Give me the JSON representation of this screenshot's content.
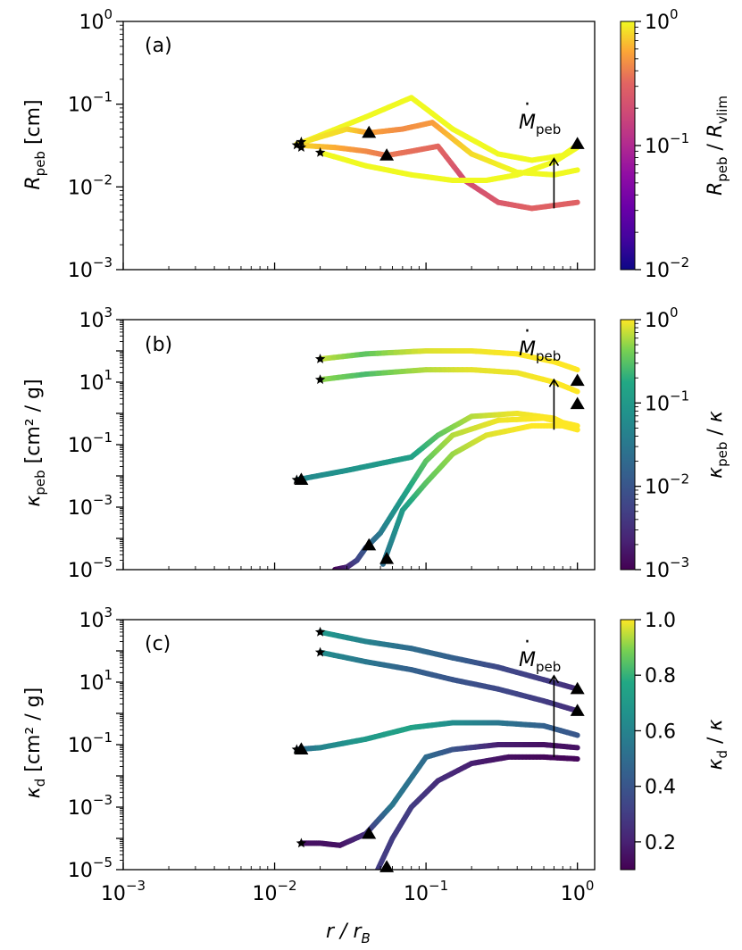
{
  "figure": {
    "xlabel_main": "r / r",
    "xlabel_sub": "B"
  },
  "chart_data": [
    {
      "type": "line",
      "panel_label": "(a)",
      "xscale": "log",
      "yscale": "log",
      "xlim": [
        0.001,
        1.3
      ],
      "ylim": [
        0.001,
        1
      ],
      "ylabel": {
        "main": "R",
        "sub": "peb",
        "unit": " [cm]"
      },
      "yticks": [
        {
          "base": "10",
          "exp": "0"
        },
        {
          "base": "10",
          "exp": "−1"
        },
        {
          "base": "10",
          "exp": "−2"
        },
        {
          "base": "10",
          "exp": "−3"
        }
      ],
      "xticks": [],
      "annotation": {
        "main": "M",
        "sub": "peb",
        "dot": "·",
        "x": 0.7,
        "y_from": 0.0055,
        "y_to": 0.022
      },
      "colorbar": {
        "colormap": "plasma",
        "scale": "log",
        "range": [
          0.01,
          1
        ],
        "ticks": [
          {
            "base": "10",
            "exp": "0"
          },
          {
            "base": "10",
            "exp": "−1"
          },
          {
            "base": "10",
            "exp": "−2"
          }
        ],
        "label": {
          "main": "R",
          "sub": "peb",
          "sep": " / ",
          "main2": "R",
          "sub2": "vlim"
        }
      },
      "series": [
        {
          "x": [
            0.015,
            0.04,
            0.08,
            0.15,
            0.3,
            0.5,
            0.8,
            1.0
          ],
          "y": [
            0.034,
            0.07,
            0.12,
            0.05,
            0.025,
            0.021,
            0.024,
            0.032
          ],
          "c": [
            0.95,
            1.0,
            1.0,
            1.0,
            1.0,
            1.0,
            1.0,
            1.0
          ]
        },
        {
          "x": [
            0.014,
            0.03,
            0.042,
            0.07,
            0.11,
            0.2,
            0.4,
            0.7,
            1.0
          ],
          "y": [
            0.033,
            0.05,
            0.045,
            0.05,
            0.06,
            0.025,
            0.015,
            0.014,
            0.016
          ],
          "c": [
            0.9,
            0.8,
            0.55,
            0.45,
            0.5,
            0.8,
            1.0,
            1.0,
            1.0
          ]
        },
        {
          "x": [
            0.014,
            0.025,
            0.04,
            0.055,
            0.08,
            0.12,
            0.18,
            0.3,
            0.5,
            1.0
          ],
          "y": [
            0.032,
            0.03,
            0.027,
            0.024,
            0.027,
            0.031,
            0.012,
            0.0065,
            0.0055,
            0.0065
          ],
          "c": [
            0.8,
            0.6,
            0.45,
            0.38,
            0.35,
            0.33,
            0.2,
            0.25,
            0.3,
            0.3
          ]
        },
        {
          "x": [
            0.02,
            0.04,
            0.08,
            0.15,
            0.25,
            0.4,
            0.7,
            1.0
          ],
          "y": [
            0.026,
            0.018,
            0.014,
            0.012,
            0.012,
            0.014,
            0.02,
            0.03
          ],
          "c": [
            1.0,
            1.0,
            1.0,
            1.0,
            1.0,
            1.0,
            1.0,
            1.0
          ]
        }
      ],
      "stars": [
        [
          0.014,
          0.032
        ],
        [
          0.015,
          0.035
        ],
        [
          0.015,
          0.03
        ],
        [
          0.02,
          0.026
        ]
      ],
      "triangles": [
        [
          0.042,
          0.045
        ],
        [
          0.055,
          0.024
        ],
        [
          1.0,
          0.033
        ]
      ]
    },
    {
      "type": "line",
      "panel_label": "(b)",
      "xscale": "log",
      "yscale": "log",
      "xlim": [
        0.001,
        1.3
      ],
      "ylim": [
        1e-05,
        1000
      ],
      "ylabel": {
        "main": "κ",
        "sub": "peb",
        "unit": " [cm² / g]"
      },
      "yticks": [
        {
          "base": "10",
          "exp": "3"
        },
        {
          "base": "10",
          "exp": "1"
        },
        {
          "base": "10",
          "exp": "−1"
        },
        {
          "base": "10",
          "exp": "−3"
        },
        {
          "base": "10",
          "exp": "−5"
        }
      ],
      "xticks": [],
      "annotation": {
        "main": "M",
        "sub": "peb",
        "dot": "·",
        "x": 0.7,
        "y_from": 0.3,
        "y_to": 12
      },
      "colorbar": {
        "colormap": "viridis",
        "scale": "log",
        "range": [
          0.001,
          1
        ],
        "ticks": [
          {
            "base": "10",
            "exp": "0"
          },
          {
            "base": "10",
            "exp": "−1"
          },
          {
            "base": "10",
            "exp": "−2"
          },
          {
            "base": "10",
            "exp": "−3"
          }
        ],
        "label": {
          "main": "κ",
          "sub": "peb",
          "sep": " / ",
          "main2": "κ",
          "sub2": ""
        }
      },
      "series": [
        {
          "x": [
            0.02,
            0.04,
            0.1,
            0.2,
            0.4,
            0.7,
            1.0
          ],
          "y": [
            55,
            80,
            100,
            100,
            80,
            45,
            25
          ],
          "c": [
            0.7,
            0.3,
            0.8,
            0.9,
            1.0,
            1.0,
            1.0
          ]
        },
        {
          "x": [
            0.02,
            0.04,
            0.1,
            0.2,
            0.4,
            0.7,
            1.0
          ],
          "y": [
            12,
            18,
            25,
            25,
            20,
            10,
            5
          ],
          "c": [
            0.5,
            0.25,
            0.6,
            0.85,
            0.9,
            1.0,
            1.0
          ]
        },
        {
          "x": [
            0.014,
            0.03,
            0.05,
            0.08,
            0.12,
            0.2,
            0.4,
            0.7,
            1.0
          ],
          "y": [
            0.0075,
            0.015,
            0.025,
            0.04,
            0.2,
            0.8,
            1.0,
            0.7,
            0.3
          ],
          "c": [
            0.05,
            0.08,
            0.1,
            0.12,
            0.3,
            0.6,
            0.9,
            1.0,
            1.0
          ]
        },
        {
          "x": [
            0.025,
            0.03,
            0.035,
            0.04,
            0.05,
            0.07,
            0.1,
            0.15,
            0.3,
            0.6,
            1.0
          ],
          "y": [
            1e-05,
            1.2e-05,
            2e-05,
            5e-05,
            0.00015,
            0.002,
            0.03,
            0.2,
            0.6,
            0.7,
            0.4
          ],
          "c": [
            0.001,
            0.002,
            0.005,
            0.01,
            0.03,
            0.1,
            0.3,
            0.6,
            0.9,
            1.0,
            1.0
          ]
        },
        {
          "x": [
            0.052,
            0.06,
            0.07,
            0.1,
            0.15,
            0.25,
            0.5,
            0.8,
            1.0
          ],
          "y": [
            1.5e-05,
            0.0001,
            0.0008,
            0.006,
            0.05,
            0.2,
            0.4,
            0.4,
            0.3
          ],
          "c": [
            0.02,
            0.05,
            0.1,
            0.3,
            0.5,
            0.8,
            1.0,
            1.0,
            1.0
          ]
        }
      ],
      "stars": [
        [
          0.02,
          55
        ],
        [
          0.02,
          12
        ],
        [
          0.014,
          0.0075
        ]
      ],
      "triangles": [
        [
          0.015,
          0.0075
        ],
        [
          0.042,
          6e-05
        ],
        [
          0.055,
          2.2e-05
        ],
        [
          1.0,
          11
        ],
        [
          1.0,
          2
        ]
      ]
    },
    {
      "type": "line",
      "panel_label": "(c)",
      "xscale": "log",
      "yscale": "log",
      "xlim": [
        0.001,
        1.3
      ],
      "ylim": [
        1e-05,
        1000
      ],
      "ylabel": {
        "main": "κ",
        "sub": "d",
        "unit": " [cm² / g]"
      },
      "yticks": [
        {
          "base": "10",
          "exp": "3"
        },
        {
          "base": "10",
          "exp": "1"
        },
        {
          "base": "10",
          "exp": "−1"
        },
        {
          "base": "10",
          "exp": "−3"
        },
        {
          "base": "10",
          "exp": "−5"
        }
      ],
      "xticks": [
        {
          "base": "10",
          "exp": "−3"
        },
        {
          "base": "10",
          "exp": "−2"
        },
        {
          "base": "10",
          "exp": "−1"
        },
        {
          "base": "10",
          "exp": "0"
        }
      ],
      "annotation": {
        "main": "M",
        "sub": "peb",
        "dot": "·",
        "x": 0.7,
        "y_from": 0.04,
        "y_to": 16
      },
      "colorbar": {
        "colormap": "viridis",
        "scale": "linear",
        "range": [
          0.1,
          1.0
        ],
        "ticks": [
          {
            "base": "1.0",
            "exp": ""
          },
          {
            "base": "0.8",
            "exp": ""
          },
          {
            "base": "0.6",
            "exp": ""
          },
          {
            "base": "0.4",
            "exp": ""
          },
          {
            "base": "0.2",
            "exp": ""
          }
        ],
        "label": {
          "main": "κ",
          "sub": "d",
          "sep": " / ",
          "main2": "κ",
          "sub2": ""
        }
      },
      "series": [
        {
          "x": [
            0.02,
            0.04,
            0.08,
            0.15,
            0.3,
            0.6,
            1.0
          ],
          "y": [
            400,
            200,
            120,
            60,
            30,
            12,
            6
          ],
          "c": [
            0.7,
            0.6,
            0.5,
            0.45,
            0.35,
            0.3,
            0.25
          ]
        },
        {
          "x": [
            0.02,
            0.04,
            0.08,
            0.15,
            0.3,
            0.6,
            1.0
          ],
          "y": [
            90,
            45,
            25,
            12,
            6,
            2.5,
            1.2
          ],
          "c": [
            0.65,
            0.55,
            0.45,
            0.4,
            0.35,
            0.3,
            0.25
          ]
        },
        {
          "x": [
            0.014,
            0.02,
            0.04,
            0.08,
            0.15,
            0.3,
            0.6,
            1.0
          ],
          "y": [
            0.07,
            0.08,
            0.15,
            0.35,
            0.5,
            0.5,
            0.4,
            0.2
          ],
          "c": [
            0.45,
            0.6,
            0.7,
            0.75,
            0.65,
            0.55,
            0.45,
            0.4
          ]
        },
        {
          "x": [
            0.015,
            0.02,
            0.027,
            0.04,
            0.06,
            0.1,
            0.15,
            0.3,
            0.6,
            1.0
          ],
          "y": [
            7e-05,
            7e-05,
            6e-05,
            0.00014,
            0.0012,
            0.04,
            0.07,
            0.1,
            0.1,
            0.08
          ],
          "c": [
            0.15,
            0.15,
            0.15,
            0.25,
            0.55,
            0.5,
            0.4,
            0.2,
            0.15,
            0.15
          ]
        },
        {
          "x": [
            0.048,
            0.06,
            0.08,
            0.12,
            0.2,
            0.35,
            0.6,
            1.0
          ],
          "y": [
            1e-05,
            0.0001,
            0.001,
            0.007,
            0.025,
            0.04,
            0.04,
            0.035
          ],
          "c": [
            0.3,
            0.3,
            0.3,
            0.25,
            0.2,
            0.15,
            0.12,
            0.12
          ]
        }
      ],
      "stars": [
        [
          0.02,
          400
        ],
        [
          0.02,
          90
        ],
        [
          0.014,
          0.07
        ],
        [
          0.015,
          7e-05
        ]
      ],
      "triangles": [
        [
          0.015,
          0.07
        ],
        [
          0.042,
          0.00014
        ],
        [
          0.055,
          1.2e-05
        ],
        [
          1.0,
          6
        ],
        [
          1.0,
          1.2
        ]
      ]
    }
  ]
}
